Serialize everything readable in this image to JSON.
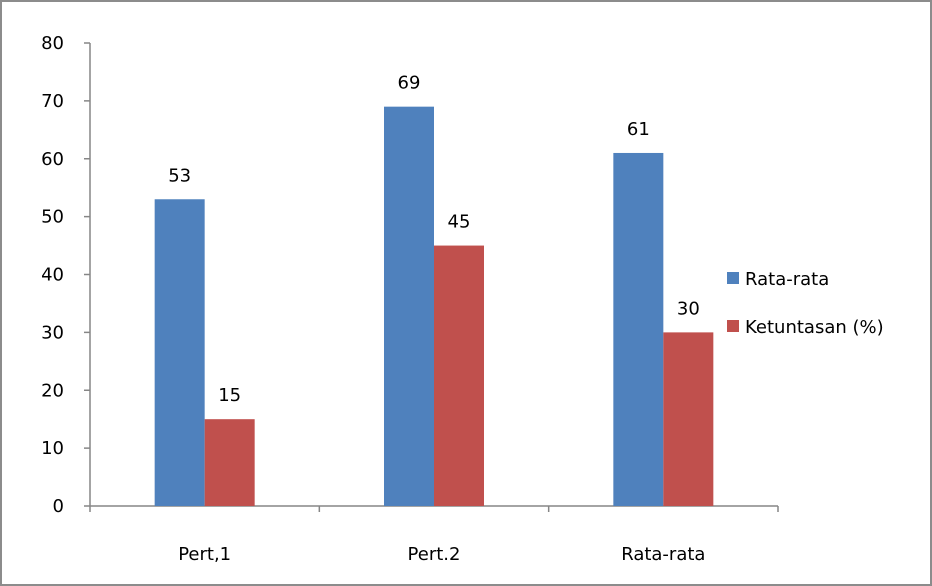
{
  "chart_data": {
    "type": "bar",
    "categories": [
      "Pert,1",
      "Pert.2",
      "Rata-rata"
    ],
    "series": [
      {
        "name": "Rata-rata",
        "values": [
          53,
          69,
          61
        ],
        "color": "#4f81bd"
      },
      {
        "name": "Ketuntasan (%)",
        "values": [
          15,
          45,
          30
        ],
        "color": "#c0504d"
      }
    ],
    "ylim": [
      0,
      80
    ],
    "yticks": [
      0,
      10,
      20,
      30,
      40,
      50,
      60,
      70,
      80
    ],
    "data_labels": true,
    "grid": false,
    "legend_position": "right"
  }
}
